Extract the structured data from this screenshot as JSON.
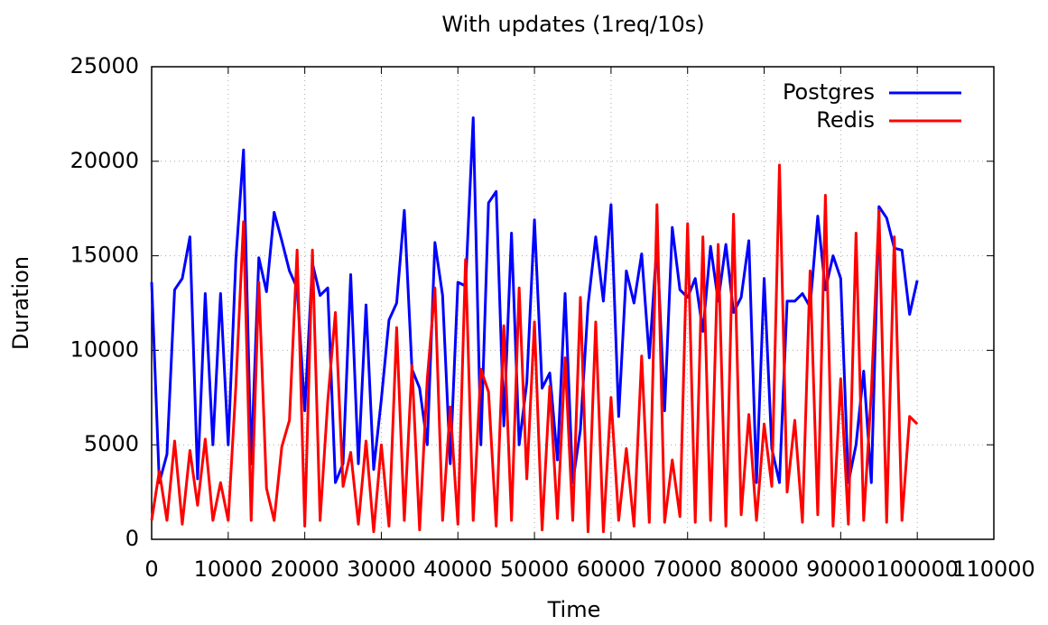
{
  "chart_data": {
    "type": "line",
    "title": "With updates (1req/10s)",
    "x_label": "Time",
    "y_label": "Duration",
    "x": [
      0,
      1000,
      2000,
      3000,
      4000,
      5000,
      6000,
      7000,
      8000,
      9000,
      10000,
      11000,
      12000,
      13000,
      14000,
      15000,
      16000,
      17000,
      18000,
      19000,
      20000,
      21000,
      22000,
      23000,
      24000,
      25000,
      26000,
      27000,
      28000,
      29000,
      30000,
      31000,
      32000,
      33000,
      34000,
      35000,
      36000,
      37000,
      38000,
      39000,
      40000,
      41000,
      42000,
      43000,
      44000,
      45000,
      46000,
      47000,
      48000,
      49000,
      50000,
      51000,
      52000,
      53000,
      54000,
      55000,
      56000,
      57000,
      58000,
      59000,
      60000,
      61000,
      62000,
      63000,
      64000,
      65000,
      66000,
      67000,
      68000,
      69000,
      70000,
      71000,
      72000,
      73000,
      74000,
      75000,
      76000,
      77000,
      78000,
      79000,
      80000,
      81000,
      82000,
      83000,
      84000,
      85000,
      86000,
      87000,
      88000,
      89000,
      90000,
      91000,
      92000,
      93000,
      94000,
      95000,
      96000,
      97000,
      98000,
      99000,
      100000
    ],
    "series": [
      {
        "name": "Postgres",
        "color": "#0000ff",
        "values": [
          13600,
          3000,
          4500,
          13200,
          13800,
          16000,
          3200,
          13000,
          5000,
          13000,
          5000,
          14800,
          20600,
          4000,
          14900,
          13100,
          17300,
          15800,
          14200,
          13300,
          6800,
          14600,
          12900,
          13300,
          3000,
          4000,
          14000,
          4000,
          12400,
          3700,
          7400,
          11600,
          12500,
          17400,
          9000,
          8000,
          5000,
          15700,
          12900,
          4000,
          13600,
          13400,
          22300,
          5000,
          17800,
          18400,
          6000,
          16200,
          5000,
          8300,
          16900,
          8000,
          8800,
          4200,
          13000,
          3000,
          5800,
          12400,
          16000,
          12600,
          17700,
          6500,
          14200,
          12500,
          15100,
          9600,
          15700,
          6800,
          16500,
          13200,
          12800,
          13800,
          11000,
          15500,
          12600,
          15600,
          12000,
          12800,
          15800,
          3000,
          13800,
          4800,
          3000,
          12600,
          12600,
          13000,
          12300,
          17100,
          13200,
          15000,
          13800,
          3000,
          5000,
          8900,
          3000,
          17600,
          17000,
          15400,
          15300,
          11900,
          13700
        ]
      },
      {
        "name": "Redis",
        "color": "#ff0000",
        "values": [
          1000,
          3600,
          1000,
          5200,
          800,
          4700,
          1800,
          5300,
          1000,
          3000,
          1000,
          8100,
          16800,
          1000,
          13600,
          2700,
          1000,
          4900,
          6300,
          15300,
          700,
          15300,
          1000,
          7300,
          12000,
          2800,
          4600,
          800,
          5200,
          400,
          5000,
          700,
          11200,
          1000,
          9200,
          500,
          8500,
          13300,
          1000,
          7000,
          800,
          14800,
          1000,
          9000,
          7800,
          700,
          11300,
          1000,
          13300,
          3200,
          11500,
          500,
          8100,
          1100,
          9600,
          1000,
          12800,
          400,
          11500,
          400,
          7500,
          1000,
          4800,
          700,
          9700,
          900,
          17700,
          900,
          4200,
          1200,
          16700,
          900,
          16000,
          1000,
          15600,
          700,
          17200,
          1300,
          6600,
          1000,
          6100,
          2800,
          19800,
          2500,
          6300,
          900,
          14200,
          1300,
          18200,
          700,
          8500,
          800,
          16200,
          1000,
          7800,
          17400,
          900,
          16000,
          1000,
          6500,
          6100
        ]
      }
    ],
    "xlim": [
      0,
      110000
    ],
    "ylim": [
      0,
      25000
    ],
    "xticks": [
      0,
      10000,
      20000,
      30000,
      40000,
      50000,
      60000,
      70000,
      80000,
      90000,
      100000,
      110000
    ],
    "yticks": [
      0,
      5000,
      10000,
      15000,
      20000,
      25000
    ],
    "grid": true,
    "legend": "top-right"
  }
}
